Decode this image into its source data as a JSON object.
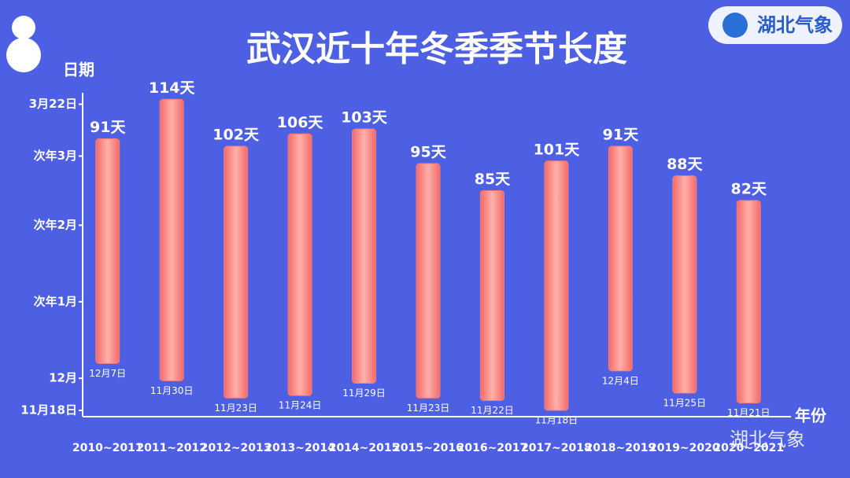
{
  "chart_data": {
    "type": "floating_bar",
    "title": "武汉近十年冬季季节长度",
    "y_label": "日期",
    "x_label": "年份",
    "categories": [
      "2010~2011",
      "2011~2012",
      "2012~2013",
      "2013~2014",
      "2014~2015",
      "2015~2016",
      "2016~2017",
      "2017~2018",
      "2018~2019",
      "2019~2020",
      "2020~2021"
    ],
    "series": [
      {
        "name": "start",
        "values": [
          19,
          12,
          5,
          6,
          11,
          5,
          4,
          0,
          16,
          7,
          3
        ],
        "value_labels": [
          "12月7日",
          "11月30日",
          "11月23日",
          "11月24日",
          "11月29日",
          "11月23日",
          "11月22日",
          "11月18日",
          "12月4日",
          "11月25日",
          "11月21日"
        ]
      },
      {
        "name": "length",
        "color": "#f47c7c",
        "values": [
          91,
          114,
          102,
          106,
          103,
          95,
          85,
          101,
          91,
          88,
          82
        ],
        "value_labels": [
          "91天",
          "114天",
          "102天",
          "106天",
          "103天",
          "95天",
          "85天",
          "101天",
          "91天",
          "88天",
          "82天"
        ]
      }
    ],
    "ylim": [
      0,
      128
    ],
    "yticks": [
      {
        "value": 0,
        "label": "11月18日"
      },
      {
        "value": 13,
        "label": "12月"
      },
      {
        "value": 44,
        "label": "次年1月"
      },
      {
        "value": 75,
        "label": "次年2月"
      },
      {
        "value": 103,
        "label": "次年3月"
      },
      {
        "value": 124,
        "label": "3月22日"
      }
    ]
  },
  "logo_text": "湖北气象",
  "watermark": "湖北气象"
}
